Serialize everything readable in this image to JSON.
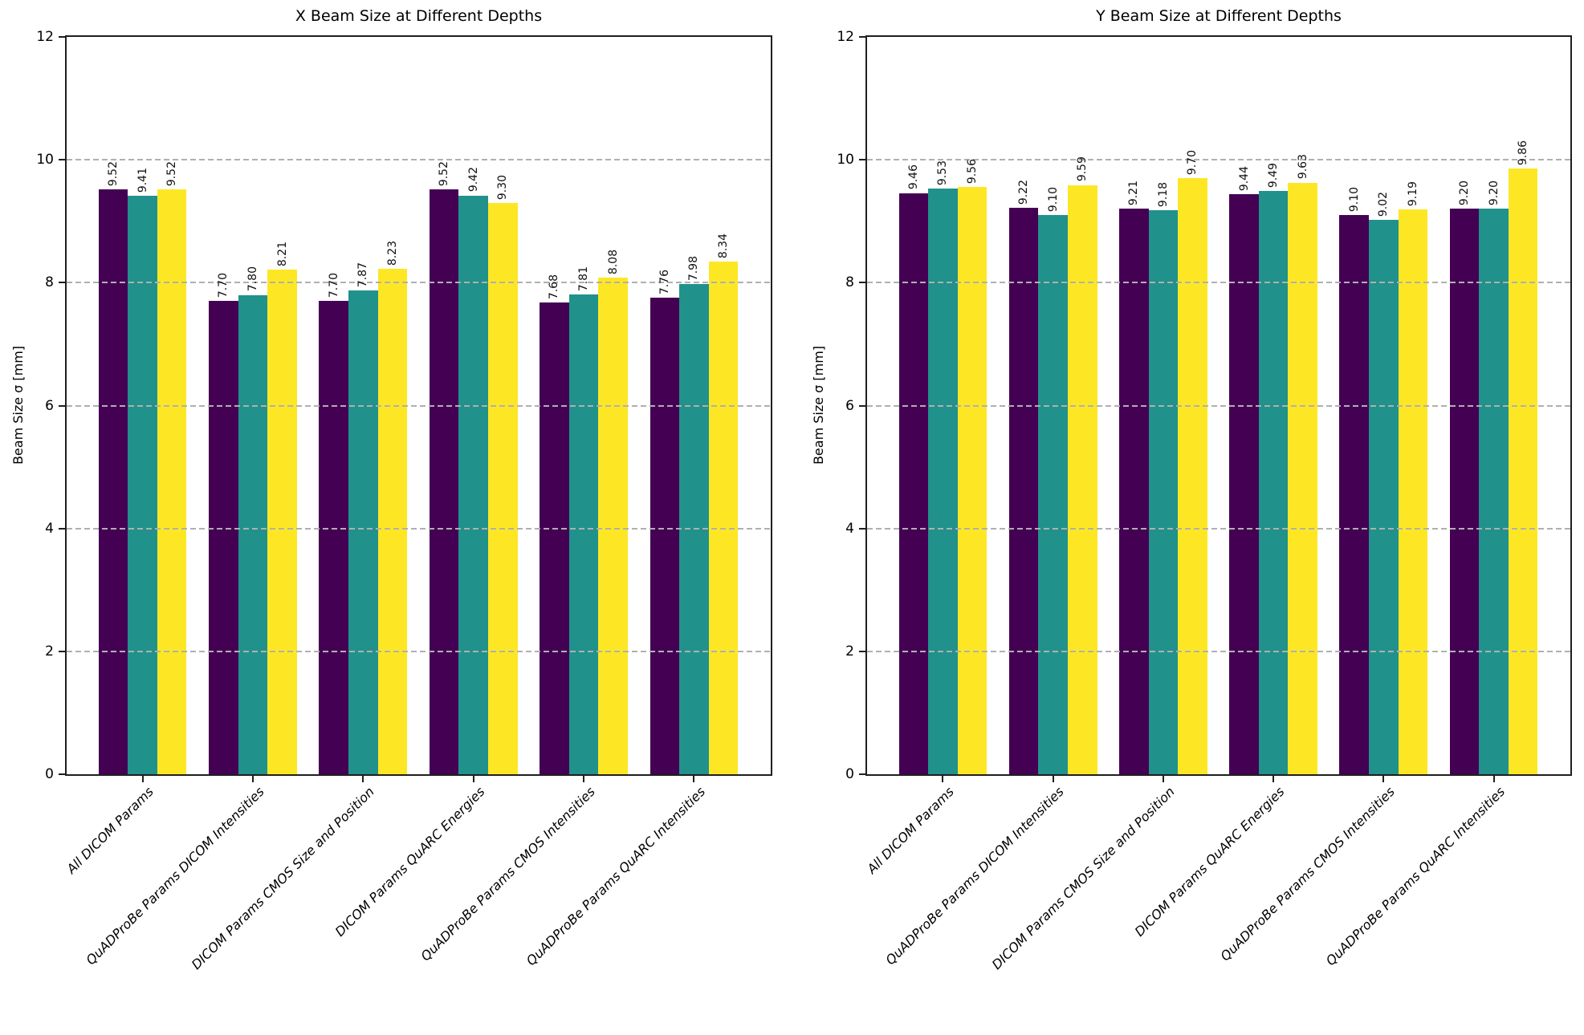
{
  "figure": {
    "background_color": "#ffffff",
    "axis_color": "#1f1f1f",
    "grid_color": "#b0b0b0",
    "series_colors": [
      "#440154",
      "#21918c",
      "#fde725"
    ]
  },
  "chart_data": [
    {
      "type": "bar",
      "title": "X Beam Size at Different Depths",
      "xlabel": "",
      "ylabel": "Beam Size σ [mm]",
      "ylim": [
        0,
        12
      ],
      "yticks": [
        0,
        2,
        4,
        6,
        8,
        10,
        12
      ],
      "grid": "horizontal dashed",
      "legend": "none",
      "value_label_rotation": 90,
      "value_label_format": "%.2f",
      "categories": [
        "All DICOM Params",
        "QuADProBe Params DICOM Intensities",
        "DICOM Params CMOS Size and Position",
        "DICOM Params QuARC Energies",
        "QuADProBe Params CMOS Intensities",
        "QuADProBe Params QuARC Intensities"
      ],
      "series": [
        {
          "color": "#440154",
          "values": [
            9.52,
            7.7,
            7.7,
            9.52,
            7.68,
            7.76
          ]
        },
        {
          "color": "#21918c",
          "values": [
            9.41,
            7.8,
            7.87,
            9.42,
            7.81,
            7.98
          ]
        },
        {
          "color": "#fde725",
          "values": [
            9.52,
            8.21,
            8.23,
            9.3,
            8.08,
            8.34
          ]
        }
      ]
    },
    {
      "type": "bar",
      "title": "Y Beam Size at Different Depths",
      "xlabel": "",
      "ylabel": "Beam Size σ [mm]",
      "ylim": [
        0,
        12
      ],
      "yticks": [
        0,
        2,
        4,
        6,
        8,
        10,
        12
      ],
      "grid": "horizontal dashed",
      "legend": "none",
      "value_label_rotation": 90,
      "value_label_format": "%.2f",
      "categories": [
        "All DICOM Params",
        "QuADProBe Params DICOM Intensities",
        "DICOM Params CMOS Size and Position",
        "DICOM Params QuARC Energies",
        "QuADProBe Params CMOS Intensities",
        "QuADProBe Params QuARC Intensities"
      ],
      "series": [
        {
          "color": "#440154",
          "values": [
            9.46,
            9.22,
            9.21,
            9.44,
            9.1,
            9.2
          ]
        },
        {
          "color": "#21918c",
          "values": [
            9.53,
            9.1,
            9.18,
            9.49,
            9.02,
            9.2
          ]
        },
        {
          "color": "#fde725",
          "values": [
            9.56,
            9.59,
            9.7,
            9.63,
            9.19,
            9.86
          ]
        }
      ]
    }
  ]
}
